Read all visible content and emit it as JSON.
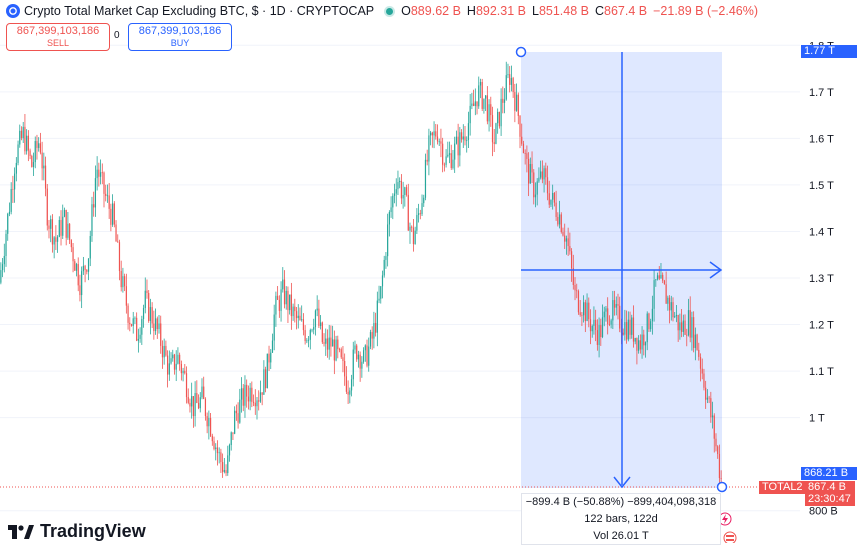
{
  "header": {
    "title": "Crypto Total Market Cap Excluding BTC, $ · 1D · CRYPTOCAP",
    "ohlc": [
      {
        "k": "O",
        "v": "889.62 B"
      },
      {
        "k": "H",
        "v": "892.31 B"
      },
      {
        "k": "L",
        "v": "851.48 B"
      },
      {
        "k": "C",
        "v": "867.4 B"
      }
    ],
    "change": "−21.89 B (−2.46%)"
  },
  "trade": {
    "sell_price": "867,399,103,186",
    "sell_label": "SELL",
    "buy_price": "867,399,103,186",
    "buy_label": "BUY",
    "spread": "0"
  },
  "axis": {
    "ticks": [
      {
        "label": "1.8 T",
        "value": 1800
      },
      {
        "label": "1.7 T",
        "value": 1700
      },
      {
        "label": "1.6 T",
        "value": 1600
      },
      {
        "label": "1.5 T",
        "value": 1500
      },
      {
        "label": "1.4 T",
        "value": 1400
      },
      {
        "label": "1.3 T",
        "value": 1300
      },
      {
        "label": "1.2 T",
        "value": 1200
      },
      {
        "label": "1.1 T",
        "value": 1100
      },
      {
        "label": "1 T",
        "value": 1000
      },
      {
        "label": "800 B",
        "value": 800
      }
    ]
  },
  "tags": {
    "range_high": "1.77 T",
    "range_low": "868.21 B",
    "symbol": "TOTAL2",
    "last_price": "867.4 B",
    "countdown": "23:30:47"
  },
  "measure": {
    "change_text": "−899.4 B (−50.88%) −899,404,098,318",
    "bars_text": "122 bars, 122d",
    "vol_text": "Vol 26.01 T"
  },
  "branding": {
    "logo_text": "TradingView"
  },
  "colors": {
    "up": "#26a69a",
    "down": "#ef5350",
    "accent": "#2962ff",
    "measure_fill": "rgba(41,98,255,0.15)"
  },
  "chart_data": {
    "type": "candlestick",
    "title": "Crypto Total Market Cap Excluding BTC, $ · 1D · CRYPTOCAP",
    "ylim": [
      780,
      1820
    ],
    "y_unit": "B",
    "close_path": [
      1290,
      1420,
      1560,
      1610,
      1540,
      1600,
      1430,
      1380,
      1430,
      1360,
      1290,
      1350,
      1540,
      1480,
      1430,
      1300,
      1220,
      1180,
      1250,
      1210,
      1160,
      1100,
      1130,
      1080,
      1020,
      1040,
      990,
      920,
      880,
      1000,
      1040,
      1060,
      1050,
      1100,
      1230,
      1270,
      1230,
      1200,
      1180,
      1230,
      1150,
      1160,
      1120,
      1070,
      1150,
      1120,
      1170,
      1260,
      1420,
      1520,
      1470,
      1380,
      1460,
      1580,
      1620,
      1550,
      1570,
      1600,
      1640,
      1700,
      1680,
      1590,
      1680,
      1740,
      1650,
      1540,
      1490,
      1520,
      1470,
      1440,
      1380,
      1260,
      1240,
      1200,
      1180,
      1230,
      1220,
      1200,
      1190,
      1160,
      1200,
      1290,
      1270,
      1230,
      1190,
      1210,
      1160,
      1070,
      980,
      867
    ],
    "measure": {
      "from": 1770,
      "to": 870.6,
      "change": -899.4,
      "change_pct": -50.88,
      "bars": 122,
      "days": 122,
      "volume": "26.01 T"
    }
  }
}
